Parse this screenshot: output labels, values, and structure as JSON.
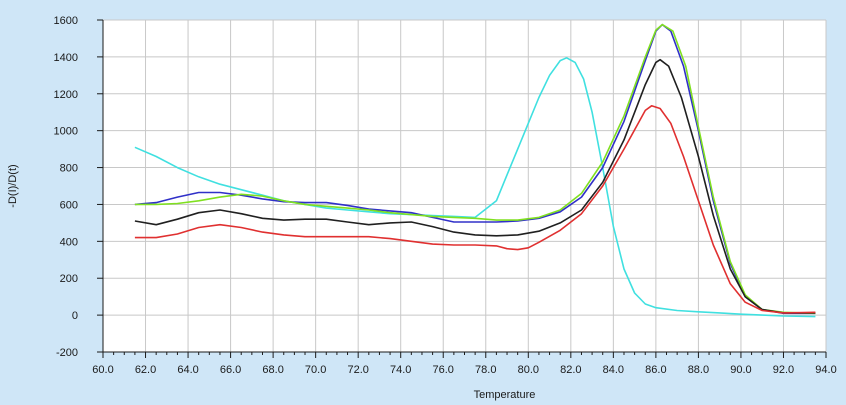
{
  "chart_data": {
    "type": "line",
    "title": "",
    "xlabel": "Temperature",
    "ylabel": "-D(I)/D(t)",
    "xlim": [
      60,
      94
    ],
    "ylim": [
      -200,
      1600
    ],
    "x_ticks": [
      60,
      62,
      64,
      66,
      68,
      70,
      72,
      74,
      76,
      78,
      80,
      82,
      84,
      86,
      88,
      90,
      92,
      94
    ],
    "x_tick_labels": [
      "60.0",
      "62.0",
      "64.0",
      "66.0",
      "68.0",
      "70.0",
      "72.0",
      "74.0",
      "76.0",
      "78.0",
      "80.0",
      "82.0",
      "84.0",
      "86.0",
      "88.0",
      "90.0",
      "92.0",
      "94.0"
    ],
    "y_ticks": [
      -200,
      0,
      200,
      400,
      600,
      800,
      1000,
      1200,
      1400,
      1600
    ],
    "y_tick_labels": [
      "-200",
      "0",
      "200",
      "400",
      "600",
      "800",
      "1000",
      "1200",
      "1400",
      "1600"
    ],
    "grid": true,
    "legend": "none",
    "series": [
      {
        "color": "#40e0e0",
        "points": [
          [
            61.5,
            910
          ],
          [
            62.5,
            860
          ],
          [
            63.5,
            800
          ],
          [
            64.5,
            750
          ],
          [
            65.5,
            710
          ],
          [
            66.5,
            680
          ],
          [
            67.5,
            650
          ],
          [
            68.5,
            620
          ],
          [
            69.5,
            600
          ],
          [
            70.5,
            580
          ],
          [
            71.5,
            570
          ],
          [
            72.5,
            560
          ],
          [
            73.5,
            550
          ],
          [
            74.5,
            545
          ],
          [
            75.5,
            540
          ],
          [
            76.5,
            535
          ],
          [
            77.5,
            530
          ],
          [
            78.5,
            620
          ],
          [
            79.0,
            760
          ],
          [
            79.5,
            900
          ],
          [
            80.0,
            1040
          ],
          [
            80.5,
            1180
          ],
          [
            81.0,
            1300
          ],
          [
            81.5,
            1380
          ],
          [
            81.8,
            1395
          ],
          [
            82.2,
            1370
          ],
          [
            82.6,
            1280
          ],
          [
            83.0,
            1100
          ],
          [
            83.5,
            800
          ],
          [
            84.0,
            480
          ],
          [
            84.5,
            250
          ],
          [
            85.0,
            120
          ],
          [
            85.5,
            60
          ],
          [
            86.0,
            40
          ],
          [
            87.0,
            25
          ],
          [
            88.0,
            18
          ],
          [
            89.0,
            12
          ],
          [
            90.0,
            5
          ],
          [
            91.0,
            0
          ],
          [
            92.0,
            -5
          ],
          [
            93.5,
            -8
          ]
        ]
      },
      {
        "color": "#3030c8",
        "points": [
          [
            61.5,
            600
          ],
          [
            62.5,
            610
          ],
          [
            63.5,
            640
          ],
          [
            64.5,
            665
          ],
          [
            65.5,
            665
          ],
          [
            66.5,
            650
          ],
          [
            67.5,
            630
          ],
          [
            68.5,
            615
          ],
          [
            69.5,
            610
          ],
          [
            70.5,
            610
          ],
          [
            71.5,
            595
          ],
          [
            72.5,
            575
          ],
          [
            73.5,
            565
          ],
          [
            74.5,
            555
          ],
          [
            75.5,
            530
          ],
          [
            76.5,
            505
          ],
          [
            77.5,
            505
          ],
          [
            78.5,
            505
          ],
          [
            79.5,
            510
          ],
          [
            80.5,
            525
          ],
          [
            81.5,
            560
          ],
          [
            82.5,
            640
          ],
          [
            83.5,
            800
          ],
          [
            84.5,
            1050
          ],
          [
            85.5,
            1380
          ],
          [
            86.0,
            1540
          ],
          [
            86.3,
            1575
          ],
          [
            86.7,
            1540
          ],
          [
            87.3,
            1350
          ],
          [
            88.0,
            1000
          ],
          [
            88.7,
            620
          ],
          [
            89.5,
            280
          ],
          [
            90.2,
            100
          ],
          [
            91.0,
            30
          ],
          [
            92.0,
            10
          ],
          [
            93.5,
            10
          ]
        ]
      },
      {
        "color": "#80e020",
        "points": [
          [
            61.5,
            600
          ],
          [
            62.5,
            600
          ],
          [
            63.5,
            605
          ],
          [
            64.5,
            620
          ],
          [
            65.5,
            640
          ],
          [
            66.5,
            655
          ],
          [
            67.5,
            645
          ],
          [
            68.5,
            620
          ],
          [
            69.5,
            600
          ],
          [
            70.5,
            590
          ],
          [
            71.5,
            580
          ],
          [
            72.5,
            570
          ],
          [
            73.5,
            555
          ],
          [
            74.5,
            545
          ],
          [
            75.5,
            535
          ],
          [
            76.5,
            530
          ],
          [
            77.5,
            525
          ],
          [
            78.5,
            515
          ],
          [
            79.5,
            515
          ],
          [
            80.5,
            530
          ],
          [
            81.5,
            570
          ],
          [
            82.5,
            660
          ],
          [
            83.5,
            830
          ],
          [
            84.5,
            1080
          ],
          [
            85.5,
            1400
          ],
          [
            86.0,
            1545
          ],
          [
            86.3,
            1575
          ],
          [
            86.8,
            1540
          ],
          [
            87.4,
            1350
          ],
          [
            88.0,
            1020
          ],
          [
            88.7,
            640
          ],
          [
            89.5,
            290
          ],
          [
            90.2,
            110
          ],
          [
            91.0,
            30
          ],
          [
            92.0,
            15
          ],
          [
            93.5,
            10
          ]
        ]
      },
      {
        "color": "#202020",
        "points": [
          [
            61.5,
            510
          ],
          [
            62.5,
            490
          ],
          [
            63.5,
            520
          ],
          [
            64.5,
            555
          ],
          [
            65.5,
            570
          ],
          [
            66.5,
            550
          ],
          [
            67.5,
            525
          ],
          [
            68.5,
            515
          ],
          [
            69.5,
            520
          ],
          [
            70.5,
            520
          ],
          [
            71.5,
            505
          ],
          [
            72.5,
            490
          ],
          [
            73.5,
            500
          ],
          [
            74.5,
            505
          ],
          [
            75.5,
            480
          ],
          [
            76.5,
            450
          ],
          [
            77.5,
            435
          ],
          [
            78.5,
            430
          ],
          [
            79.5,
            435
          ],
          [
            80.5,
            455
          ],
          [
            81.5,
            500
          ],
          [
            82.5,
            570
          ],
          [
            83.5,
            720
          ],
          [
            84.5,
            950
          ],
          [
            85.5,
            1250
          ],
          [
            86.0,
            1370
          ],
          [
            86.2,
            1385
          ],
          [
            86.6,
            1350
          ],
          [
            87.2,
            1180
          ],
          [
            88.0,
            860
          ],
          [
            88.7,
            540
          ],
          [
            89.5,
            250
          ],
          [
            90.2,
            100
          ],
          [
            91.0,
            30
          ],
          [
            92.0,
            12
          ],
          [
            93.5,
            12
          ]
        ]
      },
      {
        "color": "#e03030",
        "points": [
          [
            61.5,
            420
          ],
          [
            62.5,
            420
          ],
          [
            63.5,
            440
          ],
          [
            64.5,
            475
          ],
          [
            65.5,
            490
          ],
          [
            66.5,
            475
          ],
          [
            67.5,
            450
          ],
          [
            68.5,
            435
          ],
          [
            69.5,
            425
          ],
          [
            70.5,
            425
          ],
          [
            71.5,
            425
          ],
          [
            72.5,
            425
          ],
          [
            73.5,
            415
          ],
          [
            74.5,
            400
          ],
          [
            75.5,
            385
          ],
          [
            76.5,
            380
          ],
          [
            77.5,
            380
          ],
          [
            78.5,
            375
          ],
          [
            79.0,
            360
          ],
          [
            79.5,
            355
          ],
          [
            80.0,
            365
          ],
          [
            80.5,
            395
          ],
          [
            81.5,
            460
          ],
          [
            82.5,
            550
          ],
          [
            83.5,
            700
          ],
          [
            84.5,
            900
          ],
          [
            85.5,
            1110
          ],
          [
            85.8,
            1135
          ],
          [
            86.2,
            1120
          ],
          [
            86.7,
            1040
          ],
          [
            87.3,
            860
          ],
          [
            88.0,
            620
          ],
          [
            88.7,
            380
          ],
          [
            89.5,
            170
          ],
          [
            90.2,
            70
          ],
          [
            91.0,
            25
          ],
          [
            92.0,
            12
          ],
          [
            93.5,
            15
          ]
        ]
      }
    ]
  }
}
